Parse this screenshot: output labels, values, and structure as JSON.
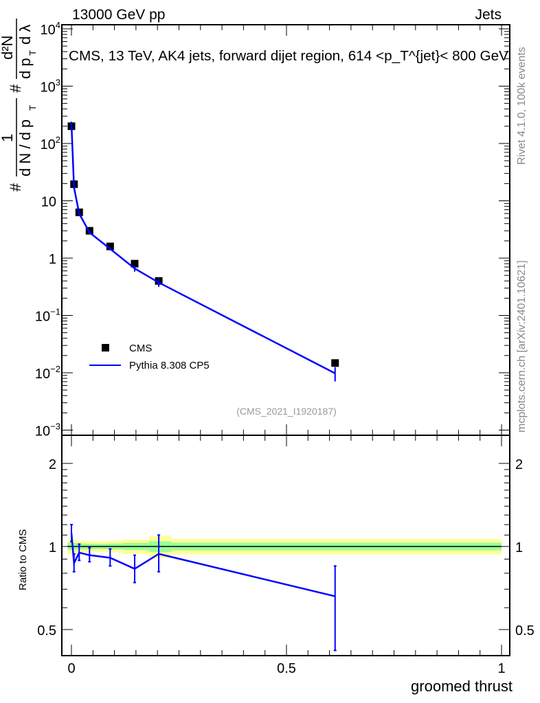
{
  "header": {
    "left": "13000 GeV pp",
    "right": "Jets"
  },
  "side_labels": {
    "rivet": "Rivet 4.1.0,  100k events",
    "mcplots": "mcplots.cern.ch [arXiv:2401.10621]"
  },
  "watermark": "(CMS_2021_I1920187)",
  "chart_data": [
    {
      "type": "scatter",
      "title": "CMS, 13 TeV, AK4 jets, forward dijet region, 614 <p_T^{jet}< 800 GeV",
      "title_parts": {
        "main": "CMS, 13 TeV, AK4 jets, forward dijet region, 614 <p",
        "sup": "{jet}",
        "sub": "T",
        "tail": "}< 800 GeV"
      },
      "ylabel": "1/σ d²N / dp_T dλ",
      "ylabel_parts": {
        "a": "#",
        "b": "1",
        "c": "d N / d p",
        "d": "T",
        "e": "#",
        "f": "d²N",
        "g": "d p",
        "h": "T",
        "i": "d λ"
      },
      "yscale": "log",
      "ylim": [
        0.001,
        10000
      ],
      "ytick_labels": [
        {
          "v": 10000,
          "base": "10",
          "exp": "4"
        },
        {
          "v": 1000,
          "base": "10",
          "exp": "3"
        },
        {
          "v": 100,
          "base": "10",
          "exp": "2"
        },
        {
          "v": 10,
          "base": "10",
          "exp": ""
        },
        {
          "v": 1,
          "base": "1",
          "exp": ""
        },
        {
          "v": 0.1,
          "base": "10",
          "exp": "−1"
        },
        {
          "v": 0.01,
          "base": "10",
          "exp": "−2"
        },
        {
          "v": 0.001,
          "base": "10",
          "exp": "−3"
        }
      ],
      "xlim": [
        0,
        1
      ],
      "legend": {
        "placement": "lower-left",
        "entries": [
          "CMS",
          "Pythia 8.308 CP5"
        ]
      },
      "x": [
        0.0,
        0.006,
        0.018,
        0.042,
        0.09,
        0.147,
        0.203,
        0.613
      ],
      "series": [
        {
          "name": "CMS",
          "values": [
            200,
            19.5,
            6.3,
            3.0,
            1.6,
            0.8,
            0.4,
            0.0148
          ],
          "color": "#000000"
        },
        {
          "name": "Pythia 8.308 CP5",
          "values": [
            224,
            17.0,
            6.0,
            2.8,
            1.45,
            0.66,
            0.375,
            0.0098
          ],
          "rel_err": [
            0.07,
            0.06,
            0.06,
            0.05,
            0.05,
            0.12,
            0.16,
            0.28
          ],
          "color": "#0000ff"
        }
      ]
    },
    {
      "type": "line",
      "ylabel": "Ratio to CMS",
      "xlabel": "groomed thrust",
      "yscale": "log",
      "ylim": [
        0.42,
        2.3
      ],
      "ytick_labels": [
        {
          "v": 0.5,
          "t": "0.5"
        },
        {
          "v": 1,
          "t": "1"
        },
        {
          "v": 2,
          "t": "2"
        }
      ],
      "xtick_labels": [
        {
          "v": 0,
          "t": "0"
        },
        {
          "v": 0.5,
          "t": "0.5"
        },
        {
          "v": 1,
          "t": "1"
        }
      ],
      "x": [
        0.0,
        0.006,
        0.018,
        0.042,
        0.09,
        0.147,
        0.203,
        0.613
      ],
      "ratio": [
        1.12,
        0.87,
        0.95,
        0.93,
        0.91,
        0.83,
        0.94,
        0.66
      ],
      "ratio_err": [
        [
          1.04,
          1.2
        ],
        [
          0.81,
          0.94
        ],
        [
          0.89,
          1.02
        ],
        [
          0.88,
          0.99
        ],
        [
          0.85,
          0.98
        ],
        [
          0.74,
          0.93
        ],
        [
          0.81,
          1.1
        ],
        [
          0.42,
          0.85
        ]
      ],
      "band_edges": [
        -0.009,
        0.011,
        0.036,
        0.085,
        0.12,
        0.18,
        0.233,
        1.0
      ],
      "band_yellow": [
        0.06,
        0.05,
        0.045,
        0.05,
        0.06,
        0.09,
        0.065
      ],
      "band_green": [
        0.03,
        0.025,
        0.022,
        0.025,
        0.03,
        0.045,
        0.032
      ]
    }
  ]
}
